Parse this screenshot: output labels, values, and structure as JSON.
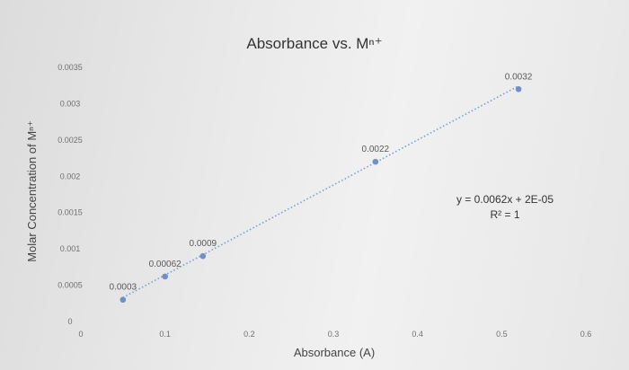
{
  "chart_data": {
    "type": "scatter",
    "title": "Absorbance vs. Mⁿ⁺",
    "xlabel": "Absorbance (A)",
    "ylabel": "Molar Concentration of Mⁿ⁺",
    "xlim": [
      0,
      0.6
    ],
    "ylim": [
      0,
      0.0035
    ],
    "x_ticks": [
      "0",
      "0.1",
      "0.2",
      "0.3",
      "0.4",
      "0.5",
      "0.6"
    ],
    "y_ticks": [
      "0",
      "0.0005",
      "0.001",
      "0.0015",
      "0.002",
      "0.0025",
      "0.003",
      "0.0035"
    ],
    "points": [
      {
        "x": 0.05,
        "y": 0.0003,
        "label": "0.0003"
      },
      {
        "x": 0.1,
        "y": 0.00062,
        "label": "0.00062"
      },
      {
        "x": 0.145,
        "y": 0.0009,
        "label": "0.0009"
      },
      {
        "x": 0.35,
        "y": 0.0022,
        "label": "0.0022"
      },
      {
        "x": 0.52,
        "y": 0.0032,
        "label": "0.0032"
      }
    ],
    "trendline": {
      "type": "linear",
      "slope": 0.0062,
      "intercept": 2e-05,
      "equation": "y = 0.0062x + 2E-05",
      "r_squared": "R² = 1",
      "style": "dotted"
    },
    "grid": false,
    "legend": "none",
    "colors": {
      "points": "#6f8fc6",
      "trendline": "#7f9ccc"
    }
  }
}
